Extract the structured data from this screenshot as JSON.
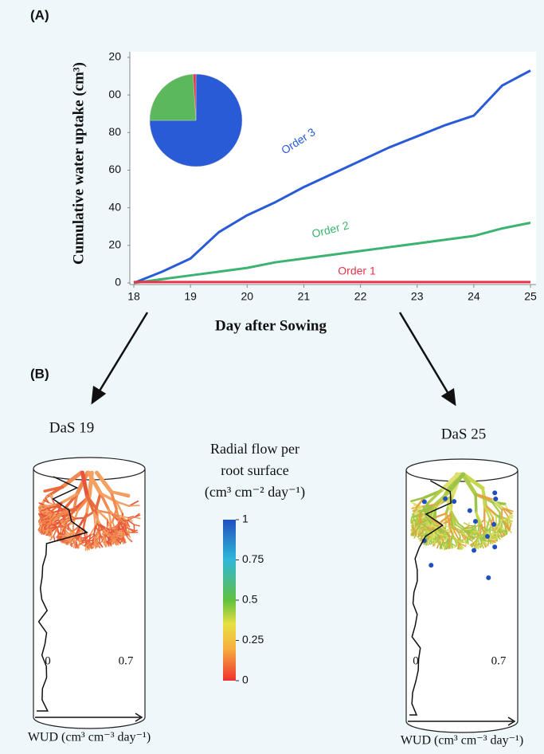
{
  "panel_a_label": "(A)",
  "chart_data": [
    {
      "type": "line",
      "y_label": "Cumulative water uptake (cm³)",
      "x_label": "Day after Sowing",
      "x": [
        18,
        18.5,
        19,
        19.5,
        20,
        20.5,
        21,
        21.5,
        22,
        22.5,
        23,
        23.5,
        24,
        24.5,
        25
      ],
      "series": [
        {
          "name": "Order 3",
          "color": "#2a5bd7",
          "values": [
            0,
            6,
            13,
            27,
            36,
            43,
            51,
            58,
            65,
            72,
            78,
            84,
            89,
            105,
            113
          ]
        },
        {
          "name": "Order 2",
          "color": "#3cb371",
          "values": [
            0,
            2,
            4,
            6,
            8,
            11,
            13,
            15,
            17,
            19,
            21,
            23,
            25,
            29,
            32
          ]
        },
        {
          "name": "Order 1",
          "color": "#e8334a",
          "values": [
            0.5,
            0.5,
            0.5,
            0.5,
            0.5,
            0.5,
            0.5,
            0.5,
            0.5,
            0.5,
            0.5,
            0.5,
            0.5,
            0.5,
            0.5
          ]
        }
      ],
      "xlim": [
        18,
        25
      ],
      "xticks": [
        18,
        19,
        20,
        21,
        22,
        23,
        24,
        25
      ],
      "ylim": [
        0,
        120
      ],
      "yticks": [
        0,
        20,
        40,
        60,
        80,
        {
          "value": 100,
          "label": "00"
        },
        {
          "value": 120,
          "label": "20"
        }
      ],
      "grid": false
    },
    {
      "type": "pie",
      "values": [
        75,
        24,
        1
      ],
      "colors": [
        "#2a5bd7",
        "#5cb85c",
        "#e8334a"
      ]
    }
  ],
  "panel_b": {
    "label": "(B)",
    "left_title": "DaS 19",
    "right_title": "DaS 25",
    "colorbar": {
      "title_lines": [
        "Radial flow per",
        "root surface",
        "(cm³ cm⁻² day⁻¹)"
      ],
      "ylim": [
        0,
        1
      ],
      "ticks": [
        1,
        0.75,
        0.5,
        0.25,
        0
      ]
    },
    "left_axis": {
      "start": "0",
      "end": "0.7",
      "label": "WUD (cm³ cm⁻³ day⁻¹)"
    },
    "right_axis": {
      "start": "0",
      "end": "0.7",
      "label": "WUD (cm³ cm⁻³ day⁻¹)"
    }
  }
}
